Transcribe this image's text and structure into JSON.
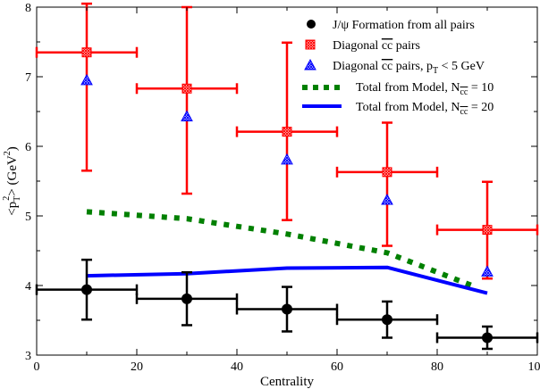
{
  "chart_data": {
    "type": "scatter",
    "title": "",
    "xlabel": "Centrality",
    "ylabel": "<pT^2> (GeV^2)",
    "ylabel_parts": {
      "open": "<p",
      "sub": "T",
      "sup": "2",
      "close": "> (GeV",
      "sup2": "2",
      "end": ")"
    },
    "xlim": [
      0,
      100
    ],
    "ylim": [
      3,
      8
    ],
    "xticks": [
      0,
      20,
      40,
      60,
      80,
      100
    ],
    "yticks": [
      3,
      4,
      5,
      6,
      7,
      8
    ],
    "grid": false,
    "legend_position": "top-right",
    "series": [
      {
        "name": "J/ψ Formation from all pairs",
        "legend_parts": {
          "text": "J/ψ Formation from all pairs"
        },
        "kind": "points",
        "marker": "circle",
        "color": "#000000",
        "x": [
          10,
          30,
          50,
          70,
          90
        ],
        "y": [
          3.94,
          3.81,
          3.66,
          3.51,
          3.25
        ],
        "xerr": [
          10,
          10,
          10,
          10,
          10
        ],
        "yerr_low": [
          0.43,
          0.38,
          0.32,
          0.26,
          0.16
        ],
        "yerr_high": [
          0.43,
          0.38,
          0.32,
          0.26,
          0.16
        ]
      },
      {
        "name": "Diagonal cc̄ pairs",
        "legend_parts": {
          "text": "Diagonal ",
          "cc": "cc",
          "rest": " pairs"
        },
        "kind": "points",
        "marker": "square-hatched",
        "color": "#ff0000",
        "x": [
          10,
          30,
          50,
          70,
          90
        ],
        "y": [
          7.35,
          6.83,
          6.21,
          5.63,
          4.8
        ],
        "xerr": [
          10,
          10,
          10,
          10,
          10
        ],
        "yerr_low": [
          1.7,
          1.51,
          1.27,
          1.06,
          0.7
        ],
        "yerr_high": [
          0.7,
          1.17,
          1.28,
          0.71,
          0.69
        ]
      },
      {
        "name": "Diagonal cc̄ pairs, pT < 5 GeV",
        "legend_parts": {
          "text": "Diagonal ",
          "cc": "cc",
          "rest": " pairs, p",
          "sub": "T",
          "end": " < 5 GeV"
        },
        "kind": "points",
        "marker": "triangle-hatched",
        "color": "#0000ff",
        "x": [
          10,
          30,
          50,
          70,
          90
        ],
        "y": [
          6.95,
          6.43,
          5.81,
          5.23,
          4.2
        ],
        "xerr": [
          0,
          0,
          0,
          0,
          0
        ],
        "yerr_low": [
          0,
          0,
          0,
          0,
          0
        ],
        "yerr_high": [
          0,
          0,
          0,
          0,
          0
        ]
      },
      {
        "name": "Total from Model, Ncc̄ = 10",
        "legend_parts": {
          "text": "Total from Model, N",
          "sub": "cc",
          "end": " = 10"
        },
        "kind": "line",
        "dash": "dotted",
        "color": "#008000",
        "x": [
          10,
          30,
          50,
          70,
          88
        ],
        "y": [
          5.06,
          4.96,
          4.74,
          4.47,
          3.97
        ]
      },
      {
        "name": "Total from Model, Ncc̄ = 20",
        "legend_parts": {
          "text": "Total from Model, N",
          "sub": "cc",
          "end": " = 20"
        },
        "kind": "line",
        "dash": "solid",
        "color": "#0000ff",
        "x": [
          10,
          30,
          50,
          70,
          90
        ],
        "y": [
          4.14,
          4.17,
          4.25,
          4.26,
          3.89
        ]
      }
    ]
  }
}
